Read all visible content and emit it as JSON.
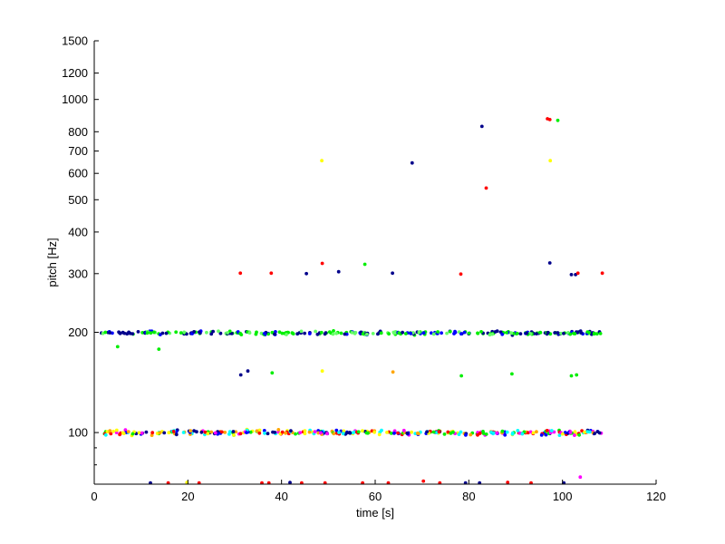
{
  "chart_data": {
    "type": "scatter",
    "title": "",
    "xlabel": "time [s]",
    "ylabel": "pitch [Hz]",
    "xlim": [
      0,
      120
    ],
    "ylim": [
      70,
      1500
    ],
    "yscale": "log",
    "xticks": [
      0,
      20,
      40,
      60,
      80,
      100,
      120
    ],
    "yticks": [
      100,
      200,
      300,
      400,
      500,
      600,
      700,
      800,
      1000,
      1200,
      1500
    ],
    "y_minor_ticks": [
      80,
      90
    ],
    "grid": false,
    "legend": "none",
    "colors": [
      "#ff0000",
      "#00008b",
      "#00ee00",
      "#ff00ff",
      "#ffff00",
      "#00ffff",
      "#ffa500",
      "#0000ff"
    ],
    "bands": [
      {
        "center": 100,
        "spread": 2.5,
        "start": 2,
        "end": 108.5,
        "count": 340,
        "colors": [
          "#ff0000",
          "#ff00ff",
          "#00ffff",
          "#ffff00",
          "#00ee00",
          "#00008b",
          "#ffa500",
          "#0000ff"
        ]
      },
      {
        "center": 199,
        "spread": 3.5,
        "start": 1.5,
        "end": 108.5,
        "count": 300,
        "colors": [
          "#00008b",
          "#00ee00",
          "#00ee00",
          "#0000ff",
          "#00008b",
          "#66ff66"
        ]
      }
    ],
    "points": [
      {
        "x": 31.2,
        "y": 301,
        "c": "#ff0000"
      },
      {
        "x": 37.8,
        "y": 301,
        "c": "#ff0000"
      },
      {
        "x": 45.3,
        "y": 300,
        "c": "#00008b"
      },
      {
        "x": 48.7,
        "y": 322,
        "c": "#ff0000"
      },
      {
        "x": 52.2,
        "y": 304,
        "c": "#00008b"
      },
      {
        "x": 57.8,
        "y": 320,
        "c": "#00ee00"
      },
      {
        "x": 63.7,
        "y": 301,
        "c": "#00008b"
      },
      {
        "x": 78.3,
        "y": 299,
        "c": "#ff0000"
      },
      {
        "x": 97.3,
        "y": 323,
        "c": "#00008b"
      },
      {
        "x": 101.9,
        "y": 298,
        "c": "#00008b"
      },
      {
        "x": 102.8,
        "y": 298,
        "c": "#00008b"
      },
      {
        "x": 103.3,
        "y": 301,
        "c": "#ff0000"
      },
      {
        "x": 108.5,
        "y": 301,
        "c": "#ff0000"
      },
      {
        "x": 31.3,
        "y": 149,
        "c": "#00008b"
      },
      {
        "x": 32.8,
        "y": 153,
        "c": "#00008b"
      },
      {
        "x": 38.0,
        "y": 151,
        "c": "#00ee00"
      },
      {
        "x": 48.7,
        "y": 153,
        "c": "#ffff00"
      },
      {
        "x": 63.8,
        "y": 152,
        "c": "#ffa500"
      },
      {
        "x": 78.4,
        "y": 148,
        "c": "#00ee00"
      },
      {
        "x": 89.2,
        "y": 150,
        "c": "#00ee00"
      },
      {
        "x": 101.9,
        "y": 148,
        "c": "#00ee00"
      },
      {
        "x": 103.0,
        "y": 149,
        "c": "#00ee00"
      },
      {
        "x": 48.6,
        "y": 655,
        "c": "#ffff00"
      },
      {
        "x": 67.9,
        "y": 645,
        "c": "#00008b"
      },
      {
        "x": 82.8,
        "y": 830,
        "c": "#00008b"
      },
      {
        "x": 83.7,
        "y": 542,
        "c": "#ff0000"
      },
      {
        "x": 96.8,
        "y": 875,
        "c": "#ff0000"
      },
      {
        "x": 97.3,
        "y": 870,
        "c": "#ff0000"
      },
      {
        "x": 99.0,
        "y": 865,
        "c": "#00ee00"
      },
      {
        "x": 97.4,
        "y": 655,
        "c": "#ffff00"
      },
      {
        "x": 5.0,
        "y": 181,
        "c": "#00ee00"
      },
      {
        "x": 13.8,
        "y": 178,
        "c": "#00ee00"
      },
      {
        "x": 103.8,
        "y": 73.5,
        "c": "#ff00ff"
      },
      {
        "x": 12.0,
        "y": 70.6,
        "c": "#00008b"
      },
      {
        "x": 15.8,
        "y": 70.6,
        "c": "#ff0000"
      },
      {
        "x": 19.8,
        "y": 70.8,
        "c": "#ffff00"
      },
      {
        "x": 22.4,
        "y": 70.6,
        "c": "#ff0000"
      },
      {
        "x": 35.8,
        "y": 70.6,
        "c": "#ff0000"
      },
      {
        "x": 37.3,
        "y": 70.6,
        "c": "#ff0000"
      },
      {
        "x": 41.8,
        "y": 70.8,
        "c": "#00008b"
      },
      {
        "x": 44.3,
        "y": 70.6,
        "c": "#ff0000"
      },
      {
        "x": 49.3,
        "y": 70.6,
        "c": "#ff0000"
      },
      {
        "x": 57.3,
        "y": 70.6,
        "c": "#ff0000"
      },
      {
        "x": 62.8,
        "y": 70.6,
        "c": "#ff0000"
      },
      {
        "x": 70.3,
        "y": 71.5,
        "c": "#ff0000"
      },
      {
        "x": 73.8,
        "y": 70.6,
        "c": "#ff0000"
      },
      {
        "x": 79.3,
        "y": 70.6,
        "c": "#00008b"
      },
      {
        "x": 82.3,
        "y": 70.6,
        "c": "#00008b"
      },
      {
        "x": 88.3,
        "y": 70.9,
        "c": "#ff0000"
      },
      {
        "x": 93.3,
        "y": 70.6,
        "c": "#ff0000"
      },
      {
        "x": 100.3,
        "y": 70.6,
        "c": "#00008b"
      }
    ]
  }
}
